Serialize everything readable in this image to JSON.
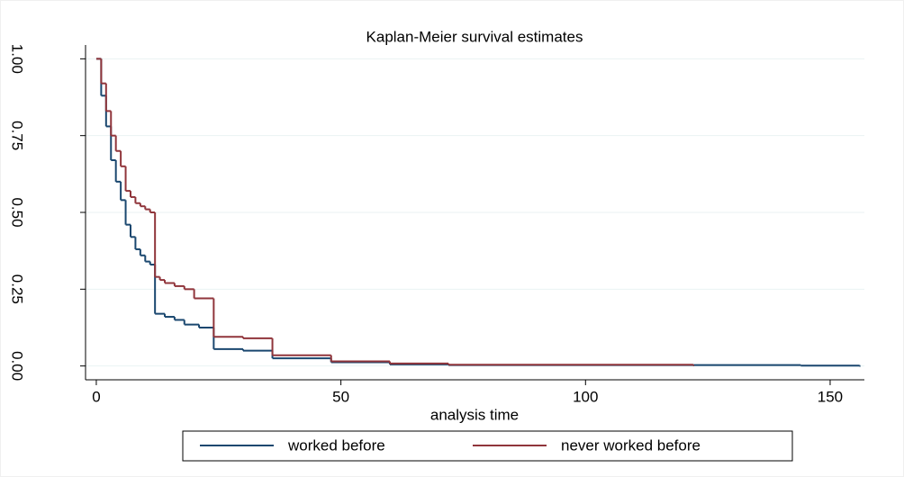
{
  "chart_data": {
    "type": "step",
    "title": "Kaplan-Meier survival estimates",
    "xlabel": "analysis time",
    "xlim": [
      -2.2,
      157
    ],
    "xticks": [
      0,
      50,
      100,
      150
    ],
    "ylim": [
      -0.045,
      1.045
    ],
    "yticks": [
      {
        "value": 0,
        "label": "0.00"
      },
      0.25,
      {
        "value": 0.5,
        "label": "0.50"
      },
      0.75,
      {
        "value": 1,
        "label": "1.00"
      }
    ],
    "grid": true,
    "legend": "bottom",
    "series": [
      {
        "name": "worked before",
        "color": "#1a476f",
        "x": [
          0,
          1,
          2,
          3,
          4,
          5,
          6,
          7,
          8,
          9,
          10,
          11,
          12,
          14,
          16,
          18,
          21,
          24,
          30,
          36,
          48,
          60,
          72,
          144,
          156
        ],
        "values": [
          1,
          0.88,
          0.78,
          0.67,
          0.6,
          0.54,
          0.46,
          0.42,
          0.38,
          0.36,
          0.34,
          0.33,
          0.17,
          0.16,
          0.15,
          0.135,
          0.125,
          0.055,
          0.05,
          0.025,
          0.012,
          0.005,
          0.003,
          0.001,
          0
        ]
      },
      {
        "name": "never worked before",
        "color": "#90353b",
        "x": [
          0,
          1,
          2,
          3,
          4,
          5,
          6,
          7,
          8,
          9,
          10,
          11,
          12,
          13,
          14,
          16,
          18,
          20,
          24,
          30,
          36,
          48,
          60,
          72,
          122
        ],
        "values": [
          1,
          0.92,
          0.83,
          0.75,
          0.7,
          0.65,
          0.57,
          0.55,
          0.53,
          0.52,
          0.51,
          0.5,
          0.29,
          0.28,
          0.27,
          0.26,
          0.25,
          0.22,
          0.095,
          0.09,
          0.035,
          0.015,
          0.008,
          0.004,
          0.002
        ]
      }
    ]
  }
}
